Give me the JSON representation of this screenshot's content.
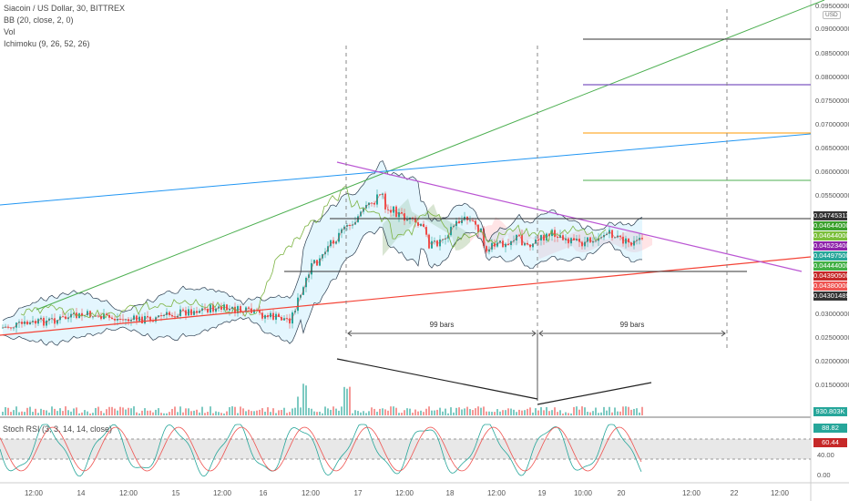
{
  "header": {
    "symbol_line": "Siacoin / US Dollar, 30, BITTREX",
    "indicators": [
      "BB (20, close, 2, 0)",
      "Vol",
      "Ichimoku (9, 26, 52, 26)"
    ]
  },
  "price_axis": {
    "ticks": [
      "0.09000000",
      "0.08500000",
      "0.08000000",
      "0.07500000",
      "0.07000000",
      "0.06500000",
      "0.06000000",
      "0.05500000",
      "0.03000000",
      "0.02500000",
      "0.02000000",
      "0.01500000"
    ],
    "top_label": "0.09500000",
    "currency_badge": "USD"
  },
  "price_tags": [
    {
      "text": "0.04745311",
      "color": "#333333"
    },
    {
      "text": "0.04644000",
      "color": "#3aa02c"
    },
    {
      "text": "0.04644000",
      "color": "#7bbf3a"
    },
    {
      "text": "0.04523400",
      "color": "#8e24aa"
    },
    {
      "text": "0.04497500",
      "color": "#26a69a"
    },
    {
      "text": "0.04444000",
      "color": "#42b045"
    },
    {
      "text": "0.04390500",
      "color": "#c62828"
    },
    {
      "text": "0.04380000",
      "color": "#ef5350"
    },
    {
      "text": "0.04301489",
      "color": "#333333"
    }
  ],
  "volume_tag": {
    "text": "930.803K",
    "color": "#26a69a"
  },
  "oscillator": {
    "title": "Stoch RSI (3, 3, 14, 14, close)",
    "tags": [
      {
        "text": "88.82",
        "color": "#26a69a"
      },
      {
        "text": "60.44",
        "color": "#c62828"
      }
    ],
    "axis_ticks": [
      "40.00",
      "0.00"
    ]
  },
  "time_axis": [
    "12:00",
    "14",
    "12:00",
    "15",
    "12:00",
    "16",
    "12:00",
    "17",
    "12:00",
    "18",
    "12:00",
    "19",
    "10:00",
    "20",
    "12:00",
    "22",
    "12:00"
  ],
  "measurements": {
    "left_label": "99 bars",
    "right_label": "99 bars"
  },
  "colors": {
    "up": "#26a69a",
    "down": "#ef5350",
    "bb": "#2c3e50",
    "trend_green": "#4caf50",
    "trend_blue": "#2196f3",
    "trend_red": "#f44336",
    "trend_purple": "#ab47bc"
  }
}
